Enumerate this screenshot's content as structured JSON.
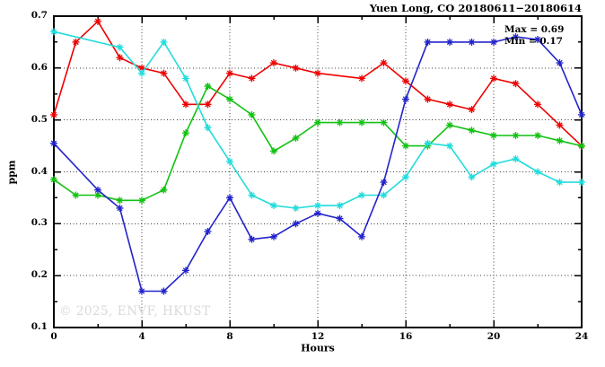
{
  "window": {
    "background": "#ffffff"
  },
  "chart_data": {
    "type": "line",
    "title": "Yuen Long, CO 20180611−20180614",
    "xlabel": "Hours",
    "ylabel": "ppm",
    "xlim": [
      0,
      24
    ],
    "ylim": [
      0.1,
      0.7
    ],
    "xticks": [
      0,
      4,
      8,
      12,
      16,
      20,
      24
    ],
    "yticks": [
      0.1,
      0.2,
      0.3,
      0.4,
      0.5,
      0.6,
      0.7
    ],
    "x_minor_step": 2,
    "y_minor_step": 0.05,
    "grid": "dotted lines at major ticks, mirrored inward ticks on all four borders",
    "legend_position": "none",
    "annotations": {
      "max_label": "Max = 0.69",
      "min_label": "Min = 0.17"
    },
    "watermark": "© 2025, ENVF, HKUST",
    "hours": [
      0,
      1,
      2,
      3,
      4,
      5,
      6,
      7,
      8,
      9,
      10,
      11,
      12,
      13,
      14,
      15,
      16,
      17,
      18,
      19,
      20,
      21,
      22,
      23,
      24
    ],
    "series": [
      {
        "name": "red",
        "color": "#ee0000",
        "values": [
          0.51,
          0.65,
          0.69,
          0.62,
          0.6,
          0.59,
          0.53,
          0.53,
          0.59,
          0.58,
          0.61,
          0.6,
          0.59,
          null,
          0.58,
          0.61,
          0.575,
          0.54,
          0.53,
          0.52,
          0.58,
          0.57,
          0.53,
          0.49,
          0.45
        ]
      },
      {
        "name": "green",
        "color": "#11c211",
        "values": [
          0.385,
          0.355,
          0.355,
          0.345,
          0.345,
          0.365,
          0.475,
          0.565,
          0.54,
          0.51,
          0.44,
          0.465,
          0.495,
          0.495,
          0.495,
          0.495,
          0.45,
          0.45,
          0.49,
          0.48,
          0.47,
          0.47,
          0.47,
          0.46,
          0.45
        ]
      },
      {
        "name": "cyan",
        "color": "#22dcdc",
        "values": [
          0.67,
          null,
          null,
          0.64,
          0.59,
          0.65,
          0.58,
          0.485,
          0.42,
          0.355,
          0.335,
          0.33,
          0.335,
          0.335,
          0.355,
          0.355,
          0.39,
          0.455,
          0.45,
          0.39,
          0.415,
          0.425,
          0.4,
          0.38,
          0.38
        ]
      },
      {
        "name": "blue",
        "color": "#2323cc",
        "values": [
          0.455,
          null,
          0.365,
          0.33,
          0.17,
          0.17,
          0.21,
          0.285,
          0.35,
          0.27,
          0.275,
          0.3,
          0.32,
          0.31,
          0.275,
          0.38,
          0.54,
          0.65,
          0.65,
          0.65,
          0.65,
          0.66,
          0.655,
          0.61,
          0.51
        ]
      }
    ],
    "colors": {
      "frame": "#000000",
      "grid": "#3c3c3c",
      "watermark": "#d9d9d9",
      "background": "#ffffff"
    }
  }
}
